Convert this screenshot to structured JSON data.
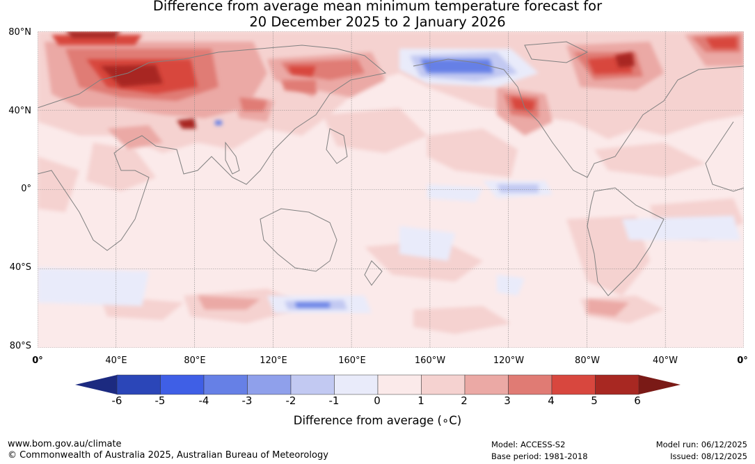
{
  "title": {
    "line1": "Difference from average mean minimum temperature forecast for",
    "line2": "20 December 2025 to 2 January 2026"
  },
  "lat_labels": [
    "80°N",
    "40°N",
    "0°",
    "40°S",
    "80°S"
  ],
  "lon_labels": [
    "0°",
    "40°E",
    "80°E",
    "120°E",
    "160°E",
    "160°W",
    "120°W",
    "80°W",
    "40°W",
    "0°"
  ],
  "colorbar": {
    "title": "Difference from average (∘C)",
    "ticks": [
      "-6",
      "-5",
      "-4",
      "-3",
      "-2",
      "-1",
      "0",
      "1",
      "2",
      "3",
      "4",
      "5",
      "6"
    ],
    "colors": [
      "#1c2a80",
      "#2b46b8",
      "#3f5fe6",
      "#6680e6",
      "#8fa0eb",
      "#c2c9f2",
      "#e9ebfa",
      "#fbeaea",
      "#f5d2d0",
      "#eba9a5",
      "#e07b74",
      "#d8473e",
      "#a82822",
      "#7a1a16"
    ]
  },
  "map": {
    "ocean_color": "#fbeaea",
    "land_outline_color": "#808080",
    "grid_color": "#808080"
  },
  "footer": {
    "website": "www.bom.gov.au/climate",
    "copyright": "© Commonwealth of Australia 2025, Australian Bureau of Meteorology",
    "model": "Model: ACCESS-S2",
    "base_period": "Base period: 1981-2018",
    "model_run": "Model run: 06/12/2025",
    "issued": "Issued: 08/12/2025"
  }
}
